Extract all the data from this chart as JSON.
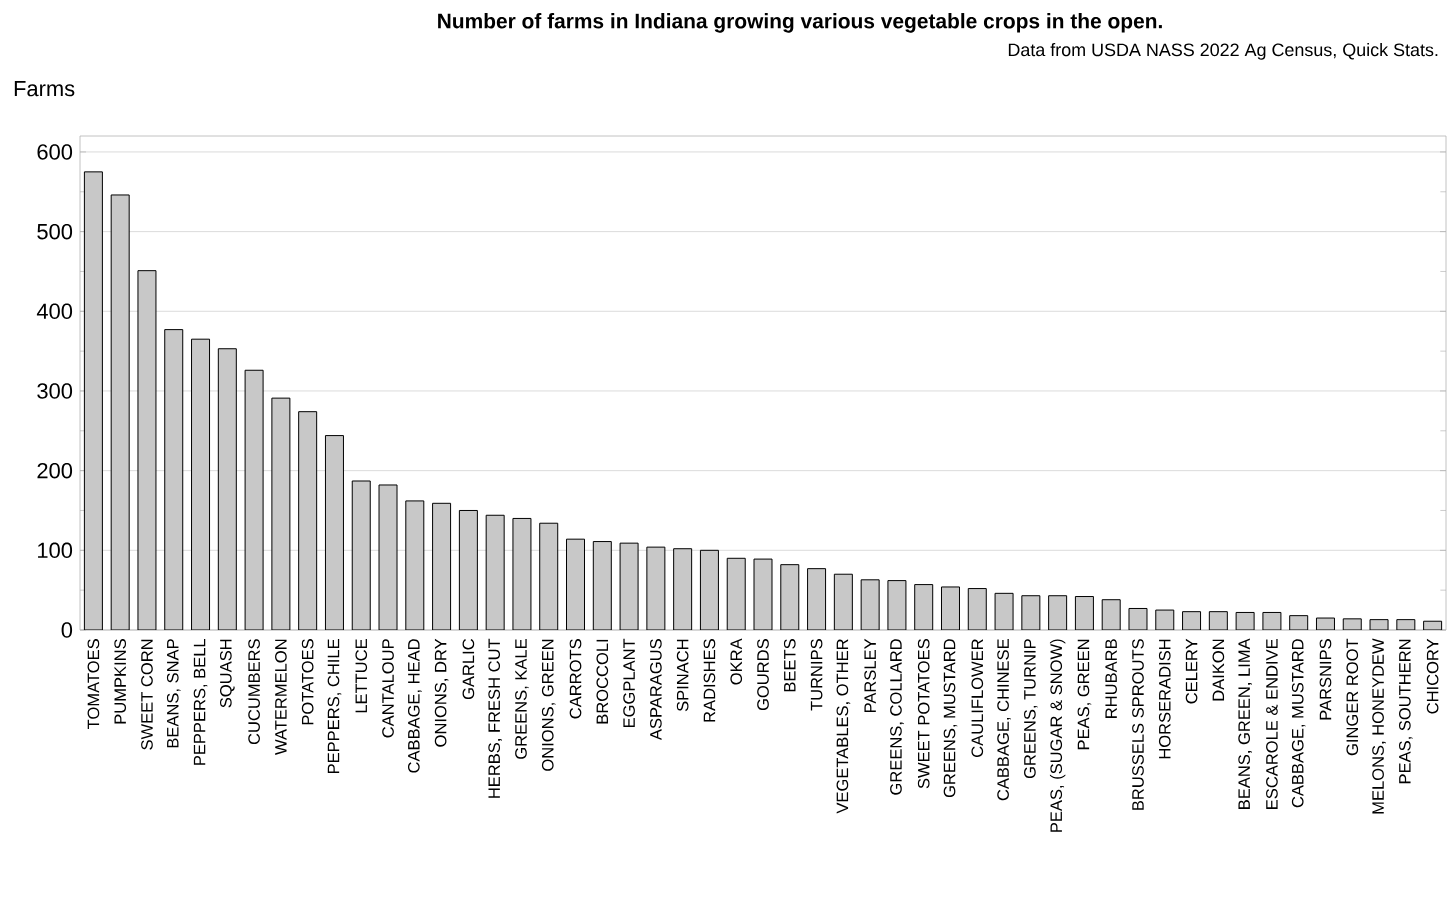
{
  "chart_data": {
    "type": "bar",
    "title": "Number of farms in Indiana growing various vegetable crops in the open.",
    "subtitle": "Data from USDA NASS 2022 Ag Census, Quick Stats.",
    "ylabel": "Farms",
    "categories": [
      "TOMATOES",
      "PUMPKINS",
      "SWEET CORN",
      "BEANS, SNAP",
      "PEPPERS, BELL",
      "SQUASH",
      "CUCUMBERS",
      "WATERMELON",
      "POTATOES",
      "PEPPERS, CHILE",
      "LETTUCE",
      "CANTALOUP",
      "CABBAGE, HEAD",
      "ONIONS, DRY",
      "GARLIC",
      "HERBS, FRESH CUT",
      "GREENS, KALE",
      "ONIONS, GREEN",
      "CARROTS",
      "BROCCOLI",
      "EGGPLANT",
      "ASPARAGUS",
      "SPINACH",
      "RADISHES",
      "OKRA",
      "GOURDS",
      "BEETS",
      "TURNIPS",
      "VEGETABLES, OTHER",
      "PARSLEY",
      "GREENS, COLLARD",
      "SWEET POTATOES",
      "GREENS, MUSTARD",
      "CAULIFLOWER",
      "CABBAGE, CHINESE",
      "GREENS, TURNIP",
      "PEAS, (SUGAR & SNOW)",
      "PEAS, GREEN",
      "RHUBARB",
      "BRUSSELS SPROUTS",
      "HORSERADISH",
      "CELERY",
      "DAIKON",
      "BEANS, GREEN, LIMA",
      "ESCAROLE & ENDIVE",
      "CABBAGE, MUSTARD",
      "PARSNIPS",
      "GINGER ROOT",
      "MELONS, HONEYDEW",
      "PEAS, SOUTHERN",
      "CHICORY"
    ],
    "values": [
      575,
      546,
      451,
      377,
      365,
      353,
      326,
      291,
      274,
      244,
      187,
      182,
      162,
      159,
      150,
      144,
      140,
      134,
      114,
      111,
      109,
      104,
      102,
      100,
      90,
      89,
      82,
      77,
      70,
      63,
      62,
      57,
      54,
      52,
      46,
      43,
      43,
      42,
      38,
      27,
      25,
      23,
      23,
      22,
      22,
      18,
      15,
      14,
      13,
      13,
      11
    ],
    "color": "#c8c8c8",
    "ylim": [
      0,
      620
    ],
    "yticks": [
      0,
      100,
      200,
      300,
      400,
      500,
      600
    ],
    "grid": "y"
  }
}
